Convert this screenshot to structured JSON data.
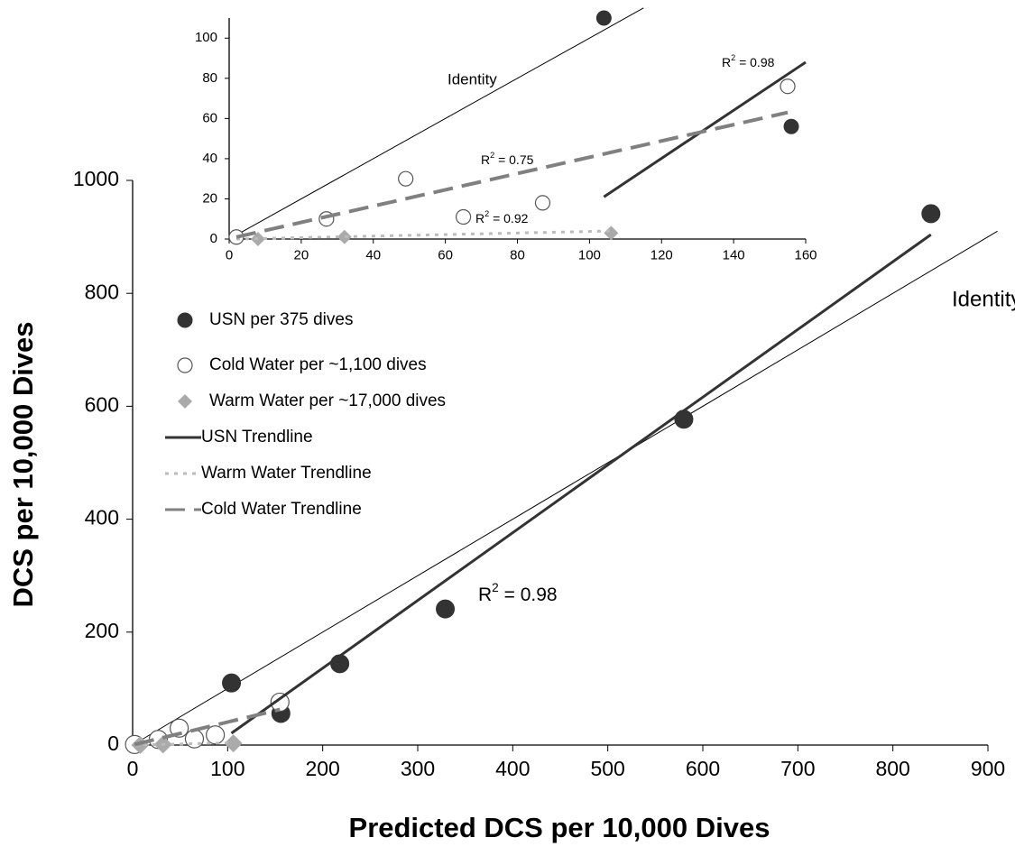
{
  "chart_data": [
    {
      "type": "scatter",
      "xlabel": "Predicted DCS per 10,000 Dives",
      "ylabel": "DCS per 10,000 Dives",
      "xlim": [
        0,
        900
      ],
      "xticks": [
        0,
        100,
        200,
        300,
        400,
        500,
        600,
        700,
        800,
        900
      ],
      "ylim": [
        0,
        1000
      ],
      "yticks": [
        0,
        200,
        400,
        600,
        800,
        1000
      ],
      "identity_line": {
        "label": "Identity",
        "x": [
          0,
          910
        ],
        "values": [
          0,
          910
        ]
      },
      "annotations": [
        {
          "parts": [
            "R",
            "2",
            " = 0.98"
          ]
        }
      ],
      "series": [
        {
          "name": "USN per 375 dives",
          "kind": "scatter",
          "marker": "filled-circle",
          "color": "#333333",
          "x": [
            104,
            156,
            218,
            329,
            580,
            840
          ],
          "values": [
            110,
            56,
            144,
            241,
            577,
            941
          ]
        },
        {
          "name": "Cold Water per ~1,100 dives",
          "kind": "scatter",
          "marker": "open-circle",
          "color": "#555555",
          "x": [
            2,
            27,
            49,
            65,
            87,
            155
          ],
          "values": [
            1,
            10,
            30,
            11,
            18,
            76
          ]
        },
        {
          "name": "Warm Water per ~17,000 dives",
          "kind": "scatter",
          "marker": "diamond",
          "color": "#aaaaaa",
          "x": [
            8,
            32,
            106
          ],
          "values": [
            0,
            1,
            3
          ]
        },
        {
          "name": "USN Trendline",
          "kind": "line",
          "dash": "solid",
          "color": "#333333",
          "x": [
            104,
            840
          ],
          "values": [
            21,
            904
          ]
        },
        {
          "name": "Warm Water Trendline",
          "kind": "line",
          "dash": "dotted",
          "color": "#bbbbbb",
          "x": [
            2,
            106
          ],
          "values": [
            0,
            4
          ]
        },
        {
          "name": "Cold Water Trendline",
          "kind": "line",
          "dash": "dashed",
          "color": "#808080",
          "x": [
            2,
            155
          ],
          "values": [
            1,
            63
          ]
        }
      ]
    },
    {
      "type": "scatter",
      "xlim": [
        0,
        160
      ],
      "xticks": [
        0,
        20,
        40,
        60,
        80,
        100,
        120,
        140,
        160
      ],
      "ylim": [
        0,
        110
      ],
      "yticks": [
        0,
        20,
        40,
        60,
        80,
        100
      ],
      "identity_line": {
        "label": "Identity",
        "x": [
          0,
          115
        ],
        "values": [
          0,
          115
        ]
      },
      "annotations": [
        {
          "parts": [
            "R",
            "2",
            " = 0.98"
          ]
        },
        {
          "parts": [
            "R",
            "2",
            " = 0.75"
          ]
        },
        {
          "parts": [
            "R",
            "2",
            " = 0.92"
          ]
        }
      ],
      "series": [
        {
          "kind": "scatter",
          "marker": "filled-circle",
          "color": "#333333",
          "x": [
            104,
            156
          ],
          "values": [
            110,
            56
          ]
        },
        {
          "kind": "scatter",
          "marker": "open-circle",
          "color": "#555555",
          "x": [
            2,
            27,
            49,
            65,
            87,
            155
          ],
          "values": [
            1,
            10,
            30,
            11,
            18,
            76
          ]
        },
        {
          "kind": "scatter",
          "marker": "diamond",
          "color": "#aaaaaa",
          "x": [
            8,
            32,
            106
          ],
          "values": [
            0,
            1,
            3
          ]
        },
        {
          "kind": "line",
          "dash": "solid",
          "color": "#333333",
          "x": [
            104,
            160
          ],
          "values": [
            21,
            88
          ]
        },
        {
          "kind": "line",
          "dash": "dotted",
          "color": "#bbbbbb",
          "x": [
            2,
            106
          ],
          "values": [
            0,
            4
          ]
        },
        {
          "kind": "line",
          "dash": "dashed",
          "color": "#808080",
          "x": [
            2,
            155
          ],
          "values": [
            1,
            63
          ]
        }
      ]
    }
  ]
}
